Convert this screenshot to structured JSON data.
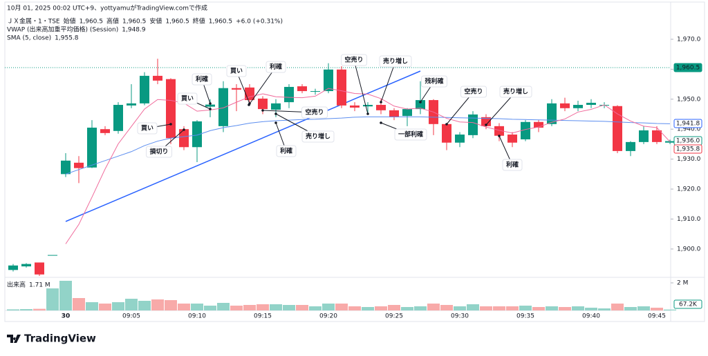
{
  "header": {
    "credit": "10月 01, 2025 00:02 UTC+9、yottyamuがTradingView.comで作成",
    "symbol": "ＪＸ金属・1・TSE",
    "open_label": "始値",
    "open": "1,960.5",
    "high_label": "高値",
    "high": "1,960.5",
    "low_label": "安値",
    "low": "1,960.5",
    "close_label": "終値",
    "close": "1,960.5",
    "change": "+6.0 (+0.31%)",
    "vwap_label": "VWAP (出来高加重平均価格) (Session)",
    "vwap": "1,948.9",
    "sma_label": "SMA (5, close)",
    "sma": "1,955.8",
    "volume_label": "出来高",
    "volume": "1.71 M"
  },
  "brand": "TradingView",
  "axis_badges": {
    "price": "1,960.5",
    "vwap": "1,941.8",
    "close": "1,936.0",
    "sma": "1,935.8",
    "volume": "67.2K"
  },
  "annotations": [
    "利確",
    "買い",
    "買い",
    "損切り",
    "買い",
    "利確",
    "空売り",
    "売り増し",
    "利確",
    "空売り",
    "売り増し",
    "一部利確",
    "残利確",
    "空売り",
    "売り増し",
    "利確"
  ],
  "chart_data": {
    "type": "candlestick",
    "categories": [
      null,
      null,
      null,
      null,
      "30",
      null,
      null,
      null,
      null,
      "09:05",
      null,
      null,
      null,
      null,
      "09:10",
      null,
      null,
      null,
      null,
      "09:15",
      null,
      null,
      null,
      null,
      "09:20",
      null,
      null,
      null,
      null,
      "09:25",
      null,
      null,
      null,
      null,
      "09:30",
      null,
      null,
      null,
      null,
      "09:35",
      null,
      null,
      null,
      null,
      "09:40",
      null,
      null,
      null,
      null,
      "09:45",
      null
    ],
    "open": [
      1893,
      1894.2,
      1895.5,
      1898,
      1925,
      1928.8,
      1927.2,
      1940,
      1939.4,
      1947.9,
      1948.6,
      1957.8,
      1956.7,
      1940,
      1934,
      1947.5,
      1941,
      1953.7,
      1953.9,
      1950.2,
      1946.5,
      1949,
      1954.3,
      1952.7,
      1952.7,
      1959.9,
      1947.9,
      1947.6,
      1948.1,
      1946.3,
      1944.4,
      1946.7,
      1949.7,
      1941.7,
      1935.5,
      1938,
      1944,
      1941,
      1938.2,
      1936.6,
      1942.4,
      1941.7,
      1948.6,
      1947,
      1948.1,
      1948.1,
      1947.7,
      1932.7,
      1935.7,
      1939.6,
      1935.5
    ],
    "high": [
      1895,
      1895.3,
      1895.5,
      1898,
      1932,
      1931,
      1943,
      1941,
      1949,
      1955,
      1959,
      1963.5,
      1957,
      1941,
      1943,
      1950,
      1956,
      1955,
      1955,
      1951,
      1950,
      1955,
      1955,
      1953.5,
      1962,
      1961,
      1949,
      1949,
      1950,
      1947,
      1947,
      1956,
      1950,
      1942,
      1939,
      1946,
      1945,
      1942,
      1939,
      1943,
      1943,
      1950,
      1950.5,
      1949.5,
      1950,
      1949,
      1948,
      1936,
      1941,
      1941,
      1936.5
    ],
    "low": [
      1892.5,
      1893.8,
      1891,
      1898,
      1924,
      1922,
      1927,
      1938,
      1938.5,
      1947,
      1948,
      1955,
      1935,
      1933,
      1929,
      1944,
      1939,
      1946,
      1948,
      1945,
      1944,
      1947,
      1952,
      1951.5,
      1952,
      1947,
      1946,
      1945,
      1945,
      1943,
      1941,
      1945,
      1938,
      1933,
      1934,
      1937,
      1940,
      1936,
      1934,
      1936,
      1939,
      1941,
      1946,
      1946,
      1947,
      1947,
      1932,
      1931,
      1935,
      1935,
      1935
    ],
    "close": [
      1894.5,
      1895,
      1891.5,
      1898,
      1929.5,
      1927,
      1940.5,
      1938.7,
      1948.1,
      1948.6,
      1957.8,
      1956.2,
      1937,
      1934,
      1942.6,
      1948.2,
      1953.7,
      1953.2,
      1949.7,
      1946.7,
      1948.6,
      1954.1,
      1952.7,
      1952.7,
      1959.9,
      1947.9,
      1947.2,
      1948.1,
      1946.3,
      1944,
      1946.7,
      1949.7,
      1941.7,
      1935.5,
      1938.2,
      1944.9,
      1941,
      1937.8,
      1935.5,
      1942.4,
      1940.5,
      1948.6,
      1947,
      1948.1,
      1948.8,
      1948.1,
      1932.7,
      1935.7,
      1939.6,
      1935.7,
      1936.0
    ],
    "volume": [
      0.08,
      0.1,
      0.12,
      1.6,
      2.15,
      0.9,
      0.6,
      0.5,
      0.6,
      0.85,
      0.7,
      0.8,
      0.75,
      0.5,
      0.5,
      0.35,
      0.55,
      0.35,
      0.4,
      0.45,
      0.45,
      0.4,
      0.4,
      0.3,
      0.5,
      0.5,
      0.3,
      0.25,
      0.3,
      0.4,
      0.25,
      0.3,
      0.5,
      0.4,
      0.3,
      0.45,
      0.3,
      0.3,
      0.3,
      0.35,
      0.25,
      0.3,
      0.25,
      0.3,
      0.2,
      0.15,
      0.5,
      0.25,
      0.3,
      0.2,
      0.0672
    ],
    "vwap": {
      "color": "#5b8def",
      "values": [
        null,
        null,
        null,
        null,
        1925,
        1926.5,
        1928,
        1929.5,
        1931,
        1932.5,
        1934.5,
        1936,
        1937,
        1937.5,
        1938,
        1939.5,
        1940.5,
        1941.2,
        1942,
        1942.5,
        1942.8,
        1943,
        1943.2,
        1943.3,
        1943.5,
        1943.7,
        1944,
        1944.1,
        1944.1,
        1944.1,
        1944.1,
        1944.1,
        1944.0,
        1943.9,
        1943.8,
        1943.7,
        1943.6,
        1943.5,
        1943.3,
        1943.2,
        1943.1,
        1943,
        1942.9,
        1942.8,
        1942.7,
        1942.6,
        1942.4,
        1942.2,
        1942.1,
        1941.9,
        1941.8
      ]
    },
    "sma": {
      "color": "#f06a9b",
      "values": [
        null,
        null,
        null,
        null,
        1901.7,
        1908.2,
        1917.3,
        1926.7,
        1935.1,
        1940.9,
        1946.7,
        1949.9,
        1949.6,
        1948.7,
        1946.0,
        1946.4,
        1947.1,
        1949.0,
        1950.8,
        1951.8,
        1950.8,
        1950.6,
        1950.5,
        1951.0,
        1953.6,
        1952.8,
        1951.9,
        1951.7,
        1950.2,
        1947.7,
        1946.7,
        1947.0,
        1945.7,
        1943.6,
        1942.4,
        1942.2,
        1940.7,
        1939.6,
        1938.7,
        1939.9,
        1940.7,
        1942.3,
        1943.4,
        1945.7,
        1946.6,
        1948.1,
        1945.1,
        1942.7,
        1941.0,
        1940.5,
        1935.8
      ]
    },
    "up_color": "#089981",
    "down_color": "#f23645",
    "ylim": [
      1891,
      1978.5
    ],
    "yticks": [
      {
        "value": 1900,
        "label": "1,900.0"
      },
      {
        "value": 1910,
        "label": "1,910.0"
      },
      {
        "value": 1920,
        "label": "1,920.0"
      },
      {
        "value": 1930,
        "label": "1,930.0"
      },
      {
        "value": 1940,
        "label": "1,940.0"
      },
      {
        "value": 1950,
        "label": "1,950.0"
      },
      {
        "value": 1960,
        "label": "1,960.0"
      },
      {
        "value": 1970,
        "label": "1,970.0"
      }
    ],
    "y2lim": [
      0,
      2.25
    ],
    "y2ticks": [
      {
        "value": 2,
        "label": "2 M"
      }
    ]
  }
}
